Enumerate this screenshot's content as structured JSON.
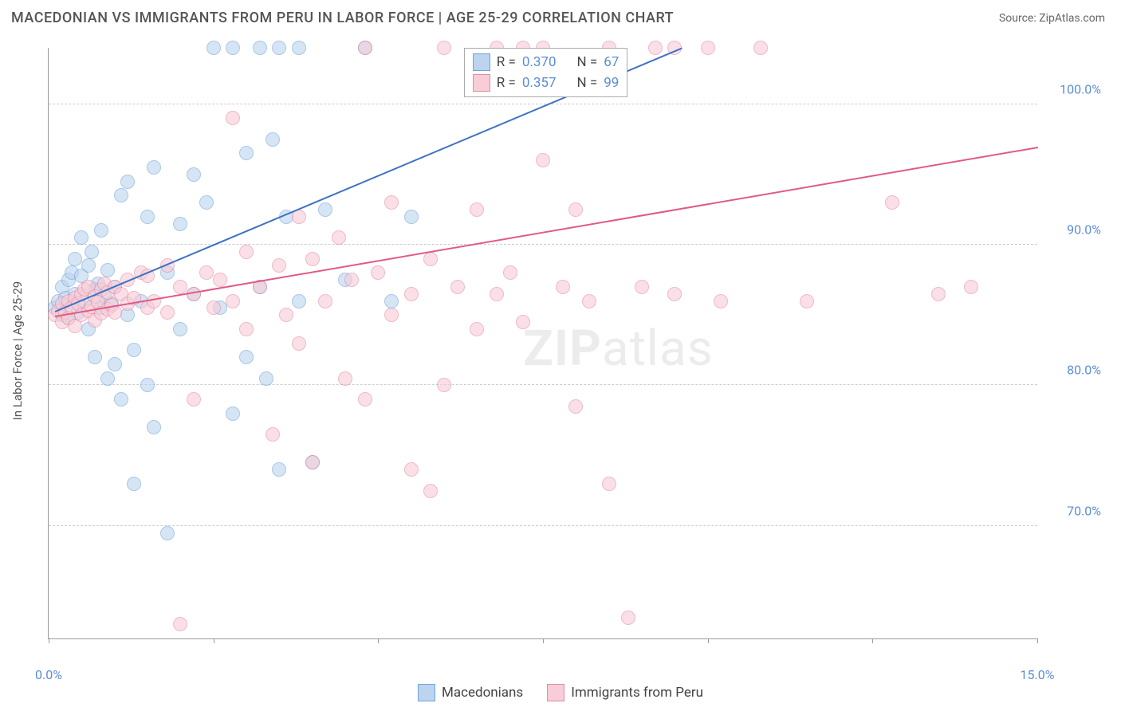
{
  "header": {
    "title": "MACEDONIAN VS IMMIGRANTS FROM PERU IN LABOR FORCE | AGE 25-29 CORRELATION CHART",
    "source_prefix": "Source: ",
    "source_name": "ZipAtlas.com"
  },
  "watermark": {
    "bold": "ZIP",
    "rest": "atlas"
  },
  "chart": {
    "type": "scatter",
    "y_axis_label": "In Labor Force | Age 25-29",
    "xlim": [
      0,
      15
    ],
    "ylim": [
      62,
      104
    ],
    "x_ticks": [
      0,
      2.5,
      5,
      7.5,
      10,
      12.5,
      15
    ],
    "x_tick_labels": {
      "0": "0.0%",
      "15": "15.0%"
    },
    "y_grid": [
      70,
      80,
      90,
      100
    ],
    "y_tick_labels": {
      "70": "70.0%",
      "80": "80.0%",
      "90": "90.0%",
      "100": "100.0%"
    },
    "background_color": "#ffffff",
    "grid_color": "#cccccc",
    "marker_radius": 9,
    "marker_border_width": 1.5,
    "series": [
      {
        "id": "macedonians",
        "name": "Macedonians",
        "fill": "#bcd4ee",
        "stroke": "#6fa3dc",
        "line_color": "#3d72c4",
        "R": "0.370",
        "N": "67",
        "trend": {
          "x1": 0.1,
          "y1": 85.3,
          "x2": 9.6,
          "y2": 104
        },
        "points": [
          [
            0.1,
            85.5
          ],
          [
            0.15,
            86.0
          ],
          [
            0.2,
            87.0
          ],
          [
            0.2,
            85.0
          ],
          [
            0.25,
            86.2
          ],
          [
            0.3,
            87.5
          ],
          [
            0.3,
            84.8
          ],
          [
            0.35,
            88.0
          ],
          [
            0.4,
            86.5
          ],
          [
            0.4,
            89.0
          ],
          [
            0.45,
            85.2
          ],
          [
            0.5,
            87.8
          ],
          [
            0.5,
            90.5
          ],
          [
            0.55,
            86.0
          ],
          [
            0.6,
            88.5
          ],
          [
            0.6,
            84.0
          ],
          [
            0.65,
            89.5
          ],
          [
            0.7,
            86.8
          ],
          [
            0.7,
            82.0
          ],
          [
            0.75,
            87.2
          ],
          [
            0.8,
            85.5
          ],
          [
            0.8,
            91.0
          ],
          [
            0.85,
            86.3
          ],
          [
            0.9,
            88.2
          ],
          [
            0.9,
            80.5
          ],
          [
            0.95,
            85.8
          ],
          [
            1.0,
            87.0
          ],
          [
            1.0,
            81.5
          ],
          [
            1.1,
            93.5
          ],
          [
            1.1,
            79.0
          ],
          [
            1.2,
            94.5
          ],
          [
            1.2,
            85.0
          ],
          [
            1.3,
            82.5
          ],
          [
            1.3,
            73.0
          ],
          [
            1.4,
            86.0
          ],
          [
            1.5,
            92.0
          ],
          [
            1.5,
            80.0
          ],
          [
            1.6,
            95.5
          ],
          [
            1.6,
            77.0
          ],
          [
            1.8,
            69.5
          ],
          [
            1.8,
            88.0
          ],
          [
            2.0,
            91.5
          ],
          [
            2.0,
            84.0
          ],
          [
            2.2,
            95.0
          ],
          [
            2.2,
            86.5
          ],
          [
            2.4,
            93.0
          ],
          [
            2.5,
            104.0
          ],
          [
            2.6,
            85.5
          ],
          [
            2.8,
            104.0
          ],
          [
            2.8,
            78.0
          ],
          [
            3.0,
            96.5
          ],
          [
            3.0,
            82.0
          ],
          [
            3.2,
            104.0
          ],
          [
            3.2,
            87.0
          ],
          [
            3.3,
            80.5
          ],
          [
            3.4,
            97.5
          ],
          [
            3.5,
            104.0
          ],
          [
            3.5,
            74.0
          ],
          [
            3.6,
            92.0
          ],
          [
            3.8,
            104.0
          ],
          [
            3.8,
            86.0
          ],
          [
            4.0,
            74.5
          ],
          [
            4.2,
            92.5
          ],
          [
            4.5,
            87.5
          ],
          [
            4.8,
            104.0
          ],
          [
            5.2,
            86.0
          ],
          [
            5.5,
            92.0
          ]
        ]
      },
      {
        "id": "peru",
        "name": "Immigrants from Peru",
        "fill": "#f7cdd7",
        "stroke": "#e68aa3",
        "line_color": "#e05a87",
        "R": "0.357",
        "N": "99",
        "trend": {
          "x1": 0.1,
          "y1": 85.0,
          "x2": 15.0,
          "y2": 97.0
        },
        "points": [
          [
            0.1,
            85.0
          ],
          [
            0.15,
            85.3
          ],
          [
            0.2,
            85.8
          ],
          [
            0.2,
            84.5
          ],
          [
            0.25,
            85.2
          ],
          [
            0.3,
            86.0
          ],
          [
            0.3,
            84.8
          ],
          [
            0.35,
            85.5
          ],
          [
            0.4,
            86.2
          ],
          [
            0.4,
            84.2
          ],
          [
            0.45,
            85.8
          ],
          [
            0.5,
            86.5
          ],
          [
            0.5,
            85.0
          ],
          [
            0.55,
            86.8
          ],
          [
            0.6,
            85.3
          ],
          [
            0.6,
            87.0
          ],
          [
            0.65,
            85.6
          ],
          [
            0.7,
            86.3
          ],
          [
            0.7,
            84.6
          ],
          [
            0.75,
            85.9
          ],
          [
            0.8,
            86.8
          ],
          [
            0.8,
            85.1
          ],
          [
            0.85,
            87.2
          ],
          [
            0.9,
            85.4
          ],
          [
            0.9,
            86.6
          ],
          [
            0.95,
            85.7
          ],
          [
            1.0,
            87.0
          ],
          [
            1.0,
            85.2
          ],
          [
            1.1,
            86.5
          ],
          [
            1.2,
            87.5
          ],
          [
            1.2,
            85.8
          ],
          [
            1.3,
            86.2
          ],
          [
            1.4,
            88.0
          ],
          [
            1.5,
            85.5
          ],
          [
            1.5,
            87.8
          ],
          [
            1.6,
            86.0
          ],
          [
            1.8,
            88.5
          ],
          [
            1.8,
            85.2
          ],
          [
            2.0,
            87.0
          ],
          [
            2.0,
            63.0
          ],
          [
            2.2,
            86.5
          ],
          [
            2.2,
            79.0
          ],
          [
            2.4,
            88.0
          ],
          [
            2.5,
            85.5
          ],
          [
            2.6,
            87.5
          ],
          [
            2.8,
            99.0
          ],
          [
            2.8,
            86.0
          ],
          [
            3.0,
            89.5
          ],
          [
            3.0,
            84.0
          ],
          [
            3.2,
            87.0
          ],
          [
            3.4,
            76.5
          ],
          [
            3.5,
            88.5
          ],
          [
            3.6,
            85.0
          ],
          [
            3.8,
            92.0
          ],
          [
            3.8,
            83.0
          ],
          [
            4.0,
            89.0
          ],
          [
            4.0,
            74.5
          ],
          [
            4.2,
            86.0
          ],
          [
            4.4,
            90.5
          ],
          [
            4.5,
            80.5
          ],
          [
            4.6,
            87.5
          ],
          [
            4.8,
            104.0
          ],
          [
            4.8,
            79.0
          ],
          [
            5.0,
            88.0
          ],
          [
            5.2,
            85.0
          ],
          [
            5.2,
            93.0
          ],
          [
            5.5,
            86.5
          ],
          [
            5.5,
            74.0
          ],
          [
            5.8,
            89.0
          ],
          [
            5.8,
            72.5
          ],
          [
            6.0,
            104.0
          ],
          [
            6.0,
            80.0
          ],
          [
            6.2,
            87.0
          ],
          [
            6.5,
            92.5
          ],
          [
            6.5,
            84.0
          ],
          [
            6.8,
            104.0
          ],
          [
            6.8,
            86.5
          ],
          [
            7.0,
            88.0
          ],
          [
            7.2,
            104.0
          ],
          [
            7.2,
            84.5
          ],
          [
            7.5,
            104.0
          ],
          [
            7.5,
            96.0
          ],
          [
            7.8,
            87.0
          ],
          [
            8.0,
            92.5
          ],
          [
            8.0,
            78.5
          ],
          [
            8.2,
            86.0
          ],
          [
            8.5,
            104.0
          ],
          [
            8.5,
            73.0
          ],
          [
            8.8,
            63.5
          ],
          [
            9.0,
            87.0
          ],
          [
            9.2,
            104.0
          ],
          [
            9.5,
            86.5
          ],
          [
            9.5,
            104.0
          ],
          [
            10.0,
            104.0
          ],
          [
            10.2,
            86.0
          ],
          [
            10.8,
            104.0
          ],
          [
            11.5,
            86.0
          ],
          [
            12.8,
            93.0
          ],
          [
            13.5,
            86.5
          ],
          [
            14.0,
            87.0
          ]
        ]
      }
    ]
  },
  "legend": {
    "items": [
      {
        "label": "Macedonians",
        "fill": "#bcd4ee",
        "stroke": "#6fa3dc"
      },
      {
        "label": "Immigrants from Peru",
        "fill": "#f7cdd7",
        "stroke": "#e68aa3"
      }
    ]
  }
}
